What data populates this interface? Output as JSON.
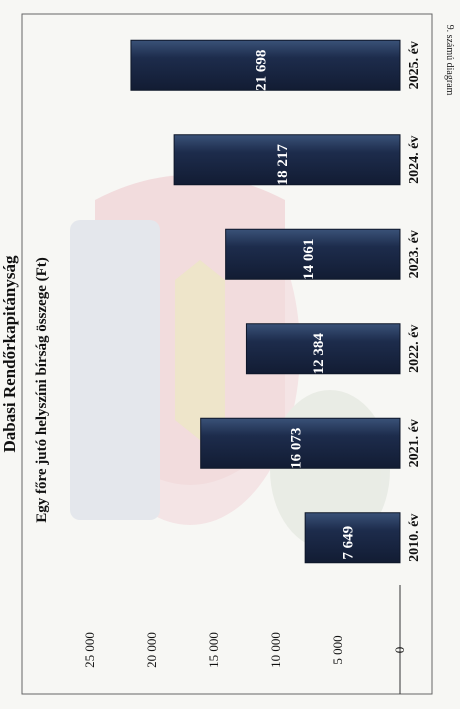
{
  "chart_data": {
    "type": "bar",
    "orientation": "horizontal",
    "title": "Dabasi Rendőrkapitányság",
    "subtitle": "Egy főre jutó helyszíni bírság összege (Ft)",
    "note": "9. számú diagram",
    "categories": [
      "2010. év",
      "2021. év",
      "2022. év",
      "2023. év",
      "2024. év",
      "2025. év"
    ],
    "values": [
      7649,
      16073,
      12384,
      14061,
      18217,
      21698
    ],
    "value_labels": [
      "7 649",
      "16 073",
      "12 384",
      "14 061",
      "18 217",
      "21 698"
    ],
    "ticks": [
      0,
      5000,
      10000,
      15000,
      20000,
      25000
    ],
    "tick_labels": [
      "0",
      "5 000",
      "10 000",
      "15 000",
      "20 000",
      "25 000"
    ],
    "xlim": [
      0,
      25000
    ],
    "grid": false,
    "legend": "none",
    "colors": {
      "bar": "#1d2c4c",
      "bar_edge": "#0d1628",
      "frame": "#555555",
      "watermark": "#e9c2c8"
    }
  }
}
